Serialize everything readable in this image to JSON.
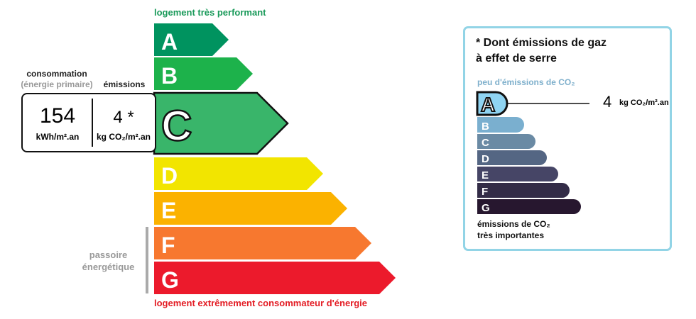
{
  "energy": {
    "top_label": "logement très performant",
    "bottom_label": "logement extrêmement consommateur d'énergie",
    "classes": [
      {
        "letter": "A",
        "color": "#00935f"
      },
      {
        "letter": "B",
        "color": "#1db24b"
      },
      {
        "letter": "C",
        "color": "#39b56a"
      },
      {
        "letter": "D",
        "color": "#f2e500"
      },
      {
        "letter": "E",
        "color": "#fbb200"
      },
      {
        "letter": "F",
        "color": "#f7782f"
      },
      {
        "letter": "G",
        "color": "#ec1a2c"
      }
    ],
    "current_class": "C",
    "consumption_label": "consommation",
    "consumption_sub": "(énergie primaire)",
    "emissions_label": "émissions",
    "consumption_value": "154",
    "consumption_unit": "kWh/m².an",
    "emissions_value": "4 *",
    "emissions_unit": "kg CO₂/m².an",
    "passoire": "passoire énergétique"
  },
  "ges": {
    "title_line1": "* Dont émissions de gaz",
    "title_line2": "à effet de serre",
    "top_label": "peu d'émissions de CO₂",
    "bottom_line1": "émissions de CO₂",
    "bottom_line2": "très importantes",
    "classes": [
      {
        "letter": "A",
        "color": "#8fd4f2"
      },
      {
        "letter": "B",
        "color": "#7aafcf"
      },
      {
        "letter": "C",
        "color": "#6a8aa4"
      },
      {
        "letter": "D",
        "color": "#546683"
      },
      {
        "letter": "E",
        "color": "#464566"
      },
      {
        "letter": "F",
        "color": "#332c47"
      },
      {
        "letter": "G",
        "color": "#27172f"
      }
    ],
    "current_class": "A",
    "value": "4",
    "unit": "kg CO₂/m².an"
  }
}
